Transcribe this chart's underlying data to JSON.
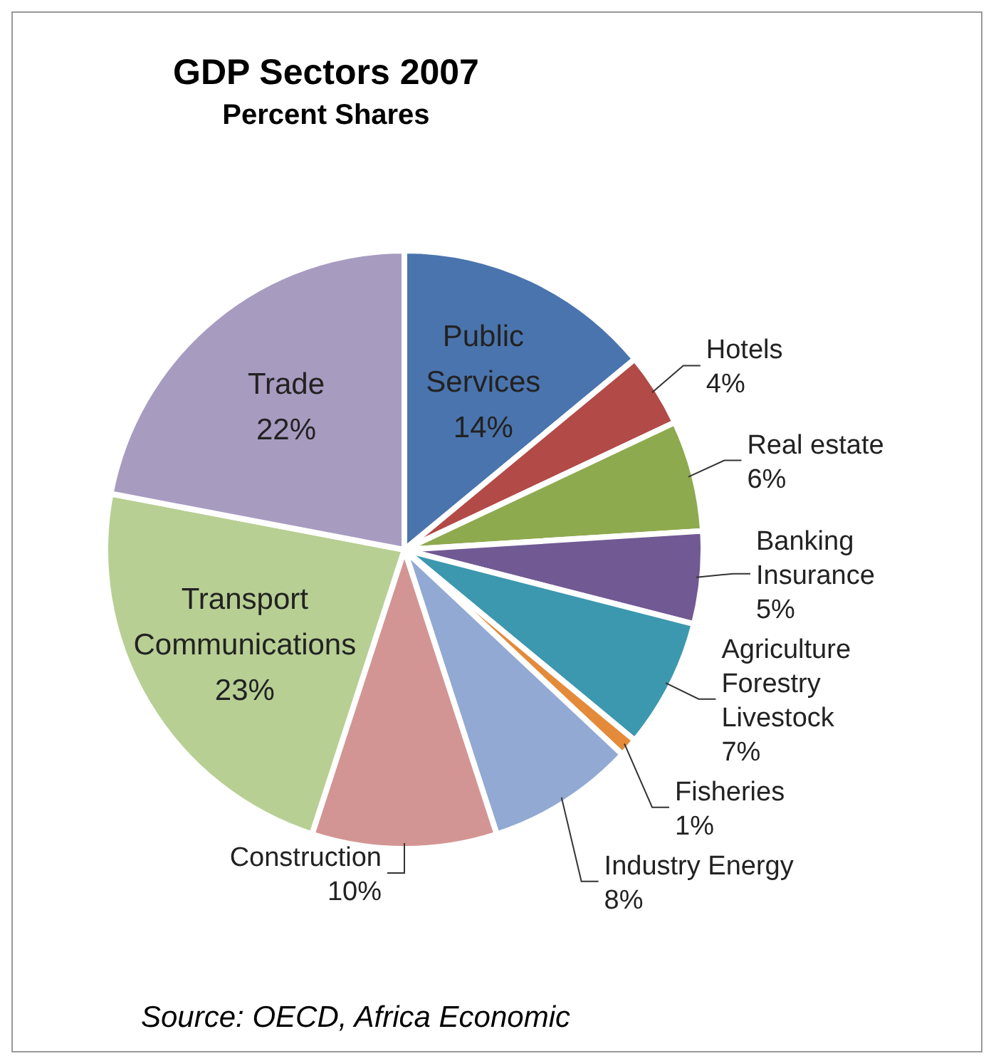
{
  "chart_data": {
    "type": "pie",
    "title": "GDP Sectors 2007",
    "subtitle": "Percent Shares",
    "categories": [
      "Public Services",
      "Hotels",
      "Real estate",
      "Banking Insurance",
      "Agriculture Forestry Livestock",
      "Fisheries",
      "Industry Energy",
      "Construction",
      "Transport Communications",
      "Trade"
    ],
    "values": [
      14,
      4,
      6,
      5,
      7,
      1,
      8,
      10,
      23,
      22
    ],
    "value_labels": [
      "14%",
      "4%",
      "6%",
      "5%",
      "7%",
      "1%",
      "8%",
      "10%",
      "23%",
      "22%"
    ],
    "colors": [
      "#4a74ad",
      "#b24a47",
      "#8eaa4f",
      "#715a93",
      "#3c98ae",
      "#e38b3a",
      "#92a9d3",
      "#d39593",
      "#b8cf94",
      "#a89bc0"
    ],
    "legend": false,
    "annotations": [
      "Source: OECD, Africa Economic"
    ]
  }
}
